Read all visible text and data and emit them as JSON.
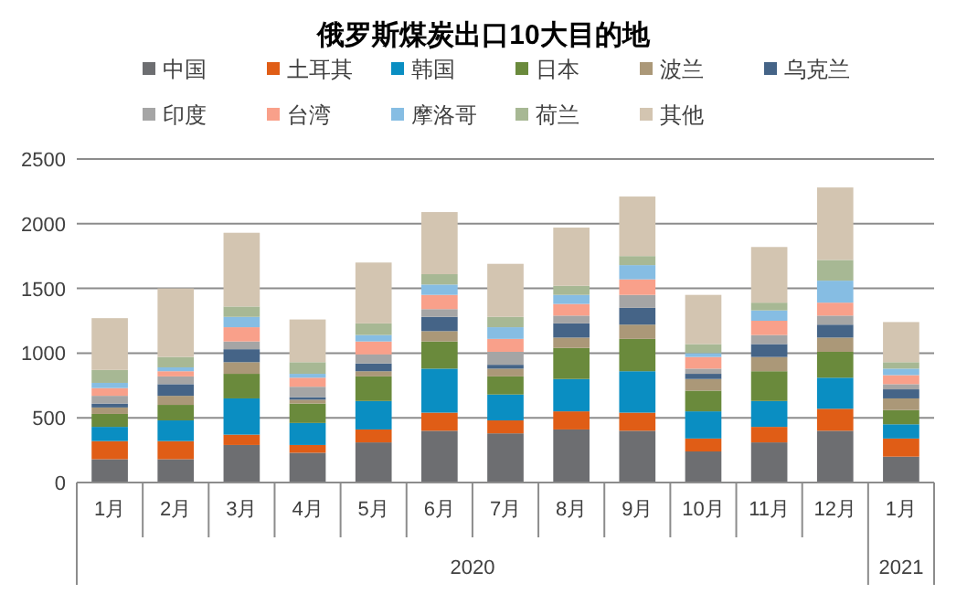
{
  "chart_data": {
    "type": "bar",
    "title": "俄罗斯煤炭出口10大目的地",
    "stacked": true,
    "legend": "top",
    "grid": "y",
    "categories": [
      "1月",
      "2月",
      "3月",
      "4月",
      "5月",
      "6月",
      "7月",
      "8月",
      "9月",
      "10月",
      "11月",
      "12月",
      "1月"
    ],
    "annotations": [
      "2020",
      "2021"
    ],
    "ylim": [
      0,
      2500
    ],
    "yticks": [
      0,
      500,
      1000,
      1500,
      2000,
      2500
    ],
    "series": [
      {
        "name": "中国",
        "color": "#6d6e71",
        "values": [
          180,
          180,
          290,
          230,
          310,
          400,
          380,
          410,
          400,
          240,
          310,
          400,
          200
        ]
      },
      {
        "name": "土耳其",
        "color": "#e05d16",
        "values": [
          140,
          140,
          80,
          60,
          100,
          140,
          100,
          140,
          140,
          100,
          120,
          170,
          140
        ]
      },
      {
        "name": "韩国",
        "color": "#0a8ec2",
        "values": [
          110,
          160,
          280,
          170,
          220,
          340,
          200,
          250,
          320,
          210,
          200,
          240,
          110
        ]
      },
      {
        "name": "日本",
        "color": "#6a8a3c",
        "values": [
          100,
          120,
          190,
          150,
          190,
          210,
          140,
          240,
          250,
          160,
          230,
          200,
          110
        ]
      },
      {
        "name": "波兰",
        "color": "#ab9878",
        "values": [
          50,
          70,
          90,
          30,
          40,
          80,
          60,
          80,
          110,
          90,
          110,
          110,
          90
        ]
      },
      {
        "name": "乌克兰",
        "color": "#456487",
        "values": [
          30,
          90,
          100,
          20,
          60,
          110,
          30,
          110,
          130,
          40,
          100,
          100,
          70
        ]
      },
      {
        "name": "印度",
        "color": "#a5a5a5",
        "values": [
          60,
          60,
          60,
          80,
          70,
          60,
          100,
          60,
          100,
          40,
          70,
          70,
          40
        ]
      },
      {
        "name": "台湾",
        "color": "#f9a08a",
        "values": [
          60,
          40,
          110,
          70,
          100,
          110,
          100,
          90,
          120,
          90,
          110,
          100,
          70
        ]
      },
      {
        "name": "摩洛哥",
        "color": "#86bde3",
        "values": [
          40,
          30,
          80,
          30,
          50,
          80,
          90,
          70,
          110,
          30,
          80,
          170,
          50
        ]
      },
      {
        "name": "荷兰",
        "color": "#a7b894",
        "values": [
          100,
          80,
          80,
          90,
          90,
          80,
          80,
          70,
          70,
          70,
          60,
          160,
          50
        ]
      },
      {
        "name": "其他",
        "color": "#d3c5b1",
        "values": [
          400,
          530,
          570,
          330,
          470,
          480,
          410,
          450,
          460,
          380,
          430,
          560,
          310
        ]
      }
    ]
  }
}
